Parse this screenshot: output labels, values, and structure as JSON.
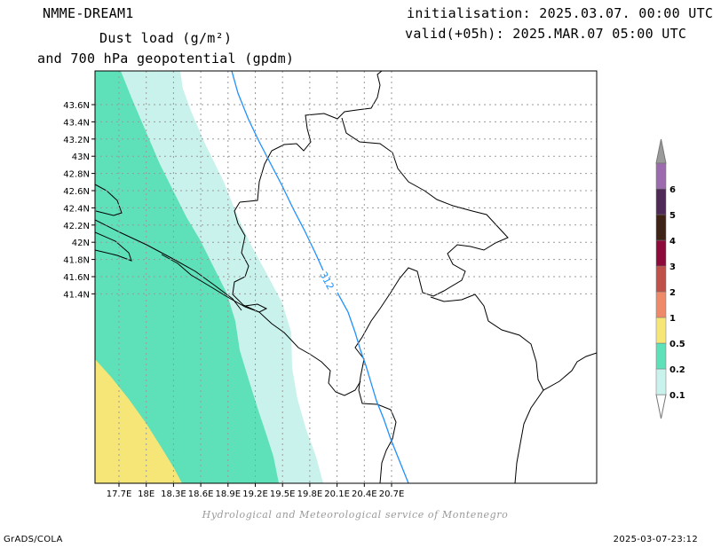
{
  "header": {
    "model": "NMME-DREAM1",
    "variable_line1": "Dust load (g/m²)",
    "variable_line2": "and 700 hPa geopotential (gpdm)",
    "init": "initialisation: 2025.03.07. 00:00 UTC",
    "valid": "valid(+05h): 2025.MAR.07 05:00 UTC"
  },
  "map": {
    "lat_labels": [
      "43.6N",
      "43.4N",
      "43.2N",
      "43N",
      "42.8N",
      "42.6N",
      "42.4N",
      "42.2N",
      "42N",
      "41.8N",
      "41.6N",
      "41.4N"
    ],
    "lon_labels": [
      "17.7E",
      "18E",
      "18.3E",
      "18.6E",
      "18.9E",
      "19.2E",
      "19.5E",
      "19.8E",
      "20.1E",
      "20.4E",
      "20.7E"
    ],
    "contour_label": "312",
    "contour_color": "#1e90ff",
    "frame_color": "#000000",
    "grid_color": "#9a9a9a"
  },
  "legend": {
    "labels": [
      "0.1",
      "0.2",
      "0.5",
      "1",
      "2",
      "3",
      "4",
      "5",
      "6"
    ],
    "colors": [
      "#c9f2ec",
      "#5ee0b8",
      "#f6e678",
      "#ee8a6a",
      "#bf504a",
      "#8c0b3a",
      "#3e2316",
      "#4f2a56",
      "#9b6bae"
    ],
    "triangle_top_color": "#9a9a9a"
  },
  "footer": {
    "credit": "Hydrological and Meteorological service of Montenegro",
    "left": "GrADS/COLA",
    "right": "2025-03-07-23:12"
  }
}
